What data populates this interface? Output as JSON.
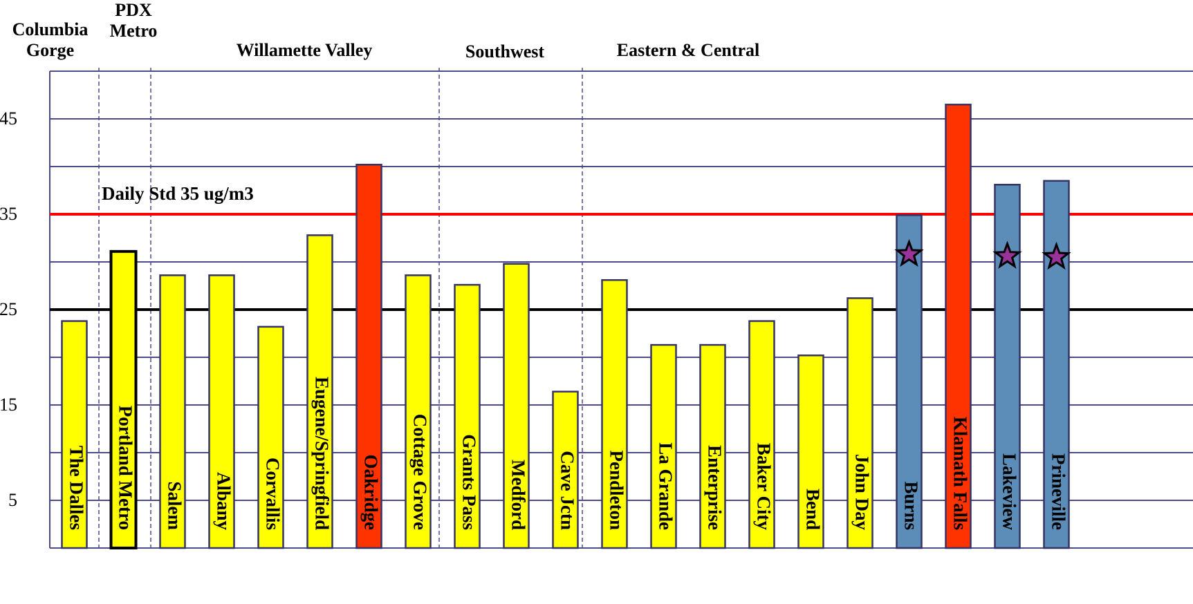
{
  "chart_data": {
    "type": "bar",
    "categories": [
      "The Dalles",
      "Portland Metro",
      "Salem",
      "Albany",
      "Corvallis",
      "Eugene/Springfield",
      "Oakridge",
      "Cottage Grove",
      "Grants Pass",
      "Medford",
      "Cave Jctn",
      "Pendleton",
      "La Grande",
      "Enterprise",
      "Baker City",
      "Bend",
      "John Day",
      "Burns",
      "Klamath Falls",
      "Lakeview",
      "Prineville"
    ],
    "values": [
      23.8,
      31.1,
      28.6,
      28.6,
      23.2,
      32.8,
      40.2,
      28.6,
      27.6,
      29.8,
      16.4,
      28.1,
      21.3,
      21.3,
      23.8,
      20.2,
      26.2,
      34.9,
      46.5,
      38.1,
      38.5
    ],
    "colors": [
      "#ffff00",
      "#ffff00",
      "#ffff00",
      "#ffff00",
      "#ffff00",
      "#ffff00",
      "#ff3300",
      "#ffff00",
      "#ffff00",
      "#ffff00",
      "#ffff00",
      "#ffff00",
      "#ffff00",
      "#ffff00",
      "#ffff00",
      "#ffff00",
      "#ffff00",
      "#5b8db8",
      "#ff3300",
      "#5b8db8",
      "#5b8db8"
    ],
    "star_values": [
      null,
      null,
      null,
      null,
      null,
      null,
      null,
      null,
      null,
      null,
      null,
      null,
      null,
      null,
      null,
      null,
      null,
      30.8,
      null,
      30.6,
      30.5
    ],
    "star_color": "#993399",
    "regions": [
      "Columbia Gorge",
      "PDX Metro",
      "Willamette Valley",
      "Southwest",
      "Eastern & Central"
    ],
    "ylim": [
      0,
      50
    ],
    "yticks": [
      5,
      15,
      25,
      35,
      45
    ],
    "grid_lines": [
      5,
      10,
      15,
      20,
      25,
      30,
      35,
      40,
      45,
      50
    ],
    "reference_lines": [
      {
        "value": 35,
        "color": "#ff0000",
        "label": "Daily Std 35 ug/m3"
      },
      {
        "value": 25,
        "color": "#000000"
      }
    ]
  }
}
